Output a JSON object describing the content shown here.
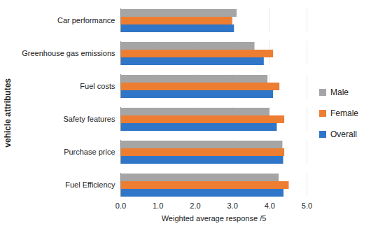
{
  "chart_data": {
    "type": "bar",
    "orientation": "horizontal",
    "x_label": "Weighted average response /5",
    "y_label": "vehicle attributes",
    "categories": [
      "Car performance",
      "Greenhouse gas emissions",
      "Fuel costs",
      "Safety features",
      "Purchase price",
      "Fuel Efficiency"
    ],
    "series": [
      {
        "name": "Male",
        "color": "#a5a5a5",
        "values": [
          3.12,
          3.6,
          3.95,
          4.0,
          4.35,
          4.25
        ]
      },
      {
        "name": "Female",
        "color": "#ed7d31",
        "values": [
          3.0,
          4.1,
          4.27,
          4.4,
          4.4,
          4.52
        ]
      },
      {
        "name": "Overall",
        "color": "#2f75c8",
        "values": [
          3.05,
          3.85,
          4.1,
          4.2,
          4.37,
          4.38
        ]
      }
    ],
    "xlim": [
      0,
      5
    ],
    "xticks": [
      0,
      1,
      2,
      3,
      4,
      5
    ],
    "grid": true,
    "legend": "right"
  }
}
